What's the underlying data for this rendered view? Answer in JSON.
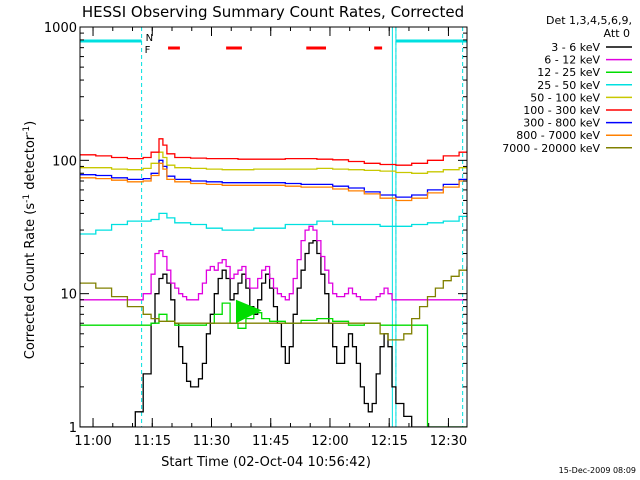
{
  "chart_data": {
    "type": "line",
    "title": "HESSI Observing Summary Count Rates, Corrected",
    "xlabel": "Start Time (02-Oct-04 10:56:42)",
    "ylabel_parts": [
      "Corrected Count Rate (s",
      "-1",
      " detector",
      "-1",
      ")"
    ],
    "ylabel": "Corrected Count Rate (s^-1 detector^-1)",
    "x_unit": "minutes after 10:56:42",
    "xlim": [
      0,
      98
    ],
    "ylim": [
      1,
      1000
    ],
    "y_scale": "log",
    "grid": false,
    "x_tick_labels": [
      {
        "label": "11:00",
        "t": 3.3
      },
      {
        "label": "11:15",
        "t": 18.3
      },
      {
        "label": "11:30",
        "t": 33.3
      },
      {
        "label": "11:45",
        "t": 48.3
      },
      {
        "label": "12:00",
        "t": 63.3
      },
      {
        "label": "12:15",
        "t": 78.3
      },
      {
        "label": "12:30",
        "t": 93.3
      }
    ],
    "y_tick_labels": [
      {
        "label": "1",
        "v": 1
      },
      {
        "label": "10",
        "v": 10
      },
      {
        "label": "100",
        "v": 100
      },
      {
        "label": "1000",
        "v": 1000
      }
    ],
    "legend_header": [
      "Det 1,3,4,5,6,9,",
      "Att 0"
    ],
    "legend_placement": "right",
    "flag_labels": [
      "N",
      "F"
    ],
    "series": [
      {
        "name": "3 - 6 keV",
        "color": "#000000",
        "x": [
          0,
          10,
          14,
          16,
          18,
          19,
          20,
          21,
          22,
          23,
          24,
          25,
          26,
          27,
          28,
          29,
          30,
          31,
          32,
          33,
          34,
          35,
          36,
          37,
          38,
          39,
          40,
          41,
          42,
          43,
          44,
          45,
          46,
          47,
          48,
          49,
          50,
          51,
          52,
          53,
          54,
          55,
          56,
          57,
          58,
          59,
          60,
          61,
          62,
          63,
          64,
          65,
          66,
          67,
          68,
          69,
          70,
          71,
          72,
          73,
          74,
          75,
          76,
          77,
          78,
          79,
          80,
          82,
          84,
          88,
          92,
          98
        ],
        "y": [
          1,
          1,
          1.3,
          2.5,
          6,
          10,
          13,
          14,
          12,
          9,
          6,
          4,
          3,
          2.2,
          2,
          2,
          2.3,
          3,
          5,
          7,
          10,
          13,
          15,
          13,
          9,
          10,
          12,
          14,
          11,
          8,
          7,
          9,
          12,
          14,
          11,
          8,
          6,
          4,
          3,
          4,
          7,
          11,
          15,
          20,
          24,
          25,
          20,
          14,
          10,
          6,
          4,
          3,
          3,
          4,
          5,
          4,
          3,
          2,
          1.5,
          1.3,
          1.5,
          2.5,
          4,
          5,
          4,
          2,
          1.5,
          1.2,
          1,
          1,
          1,
          1
        ]
      },
      {
        "name": "6 - 12 keV",
        "color": "#e000e0",
        "x": [
          0,
          10,
          14,
          16,
          18,
          19,
          20,
          21,
          22,
          23,
          24,
          25,
          26,
          27,
          28,
          29,
          30,
          31,
          32,
          33,
          34,
          35,
          36,
          37,
          38,
          39,
          40,
          41,
          42,
          43,
          44,
          45,
          46,
          47,
          48,
          49,
          50,
          51,
          52,
          53,
          54,
          55,
          56,
          57,
          58,
          59,
          60,
          61,
          62,
          63,
          64,
          65,
          66,
          67,
          68,
          69,
          70,
          71,
          72,
          73,
          74,
          75,
          76,
          77,
          78,
          79,
          80,
          82,
          84,
          88,
          92,
          98
        ],
        "y": [
          9,
          9,
          9,
          10,
          14,
          20,
          21,
          19,
          15,
          12,
          11,
          10,
          9.5,
          9,
          9,
          9,
          10,
          12,
          15,
          16,
          15,
          17,
          18,
          16,
          13,
          14,
          15,
          16,
          13,
          11,
          11,
          13,
          15,
          16,
          13,
          11,
          10,
          9.5,
          9,
          10,
          13,
          18,
          25,
          30,
          32,
          30,
          25,
          19,
          15,
          12,
          10,
          9.5,
          9.5,
          10,
          11,
          10,
          9.5,
          9,
          9,
          9,
          9,
          9.5,
          10,
          11,
          10,
          9,
          9,
          9,
          9,
          9,
          9,
          9
        ]
      },
      {
        "name": "12 - 25 keV",
        "color": "#00dd00",
        "x": [
          0,
          10,
          16,
          18,
          20,
          22,
          24,
          30,
          32,
          34,
          36,
          38,
          40,
          42,
          44,
          46,
          48,
          52,
          56,
          60,
          64,
          68,
          72,
          76,
          80,
          84,
          86,
          88,
          98
        ],
        "y": [
          5.8,
          5.8,
          5.8,
          6,
          7,
          6.2,
          5.8,
          5.8,
          6,
          7,
          8.5,
          6,
          5.5,
          6.5,
          7.2,
          6.5,
          6.2,
          6,
          6.3,
          6.5,
          6.2,
          5.8,
          6,
          5.8,
          5.8,
          5.8,
          5.8,
          1,
          1
        ]
      },
      {
        "name": "25 - 50 keV",
        "color": "#00e0e0",
        "x": [
          0,
          4,
          8,
          12,
          16,
          18,
          20,
          22,
          24,
          28,
          32,
          36,
          40,
          44,
          48,
          52,
          56,
          60,
          64,
          68,
          72,
          76,
          80,
          84,
          88,
          92,
          96,
          98
        ],
        "y": [
          28,
          30,
          33,
          35,
          35,
          36,
          40,
          37,
          34,
          33,
          31,
          30,
          30,
          31,
          31,
          33,
          33,
          35,
          33,
          33,
          33,
          32,
          32,
          33,
          34,
          35,
          38,
          38
        ]
      },
      {
        "name": "50 - 100 keV",
        "color": "#c8c800",
        "x": [
          0,
          4,
          8,
          12,
          16,
          18,
          20,
          21,
          22,
          24,
          28,
          32,
          36,
          40,
          44,
          48,
          52,
          56,
          60,
          64,
          68,
          72,
          76,
          80,
          84,
          88,
          92,
          96,
          98
        ],
        "y": [
          88,
          88,
          86,
          85,
          87,
          95,
          115,
          105,
          92,
          88,
          87,
          86,
          85,
          85,
          86,
          86,
          86,
          86,
          87,
          86,
          85,
          84,
          83,
          81,
          80,
          82,
          85,
          88,
          88
        ]
      },
      {
        "name": "100 - 300 keV",
        "color": "#ff0000",
        "x": [
          0,
          4,
          8,
          12,
          16,
          18,
          20,
          21,
          22,
          24,
          28,
          32,
          36,
          40,
          44,
          48,
          52,
          56,
          60,
          64,
          68,
          72,
          76,
          80,
          84,
          88,
          92,
          96,
          98
        ],
        "y": [
          110,
          108,
          105,
          103,
          105,
          115,
          145,
          130,
          112,
          105,
          104,
          103,
          103,
          102,
          102,
          102,
          103,
          103,
          102,
          101,
          98,
          95,
          93,
          92,
          95,
          100,
          108,
          115,
          115
        ]
      },
      {
        "name": "300 - 800 keV",
        "color": "#0000ff",
        "x": [
          0,
          4,
          8,
          12,
          16,
          18,
          20,
          21,
          22,
          24,
          28,
          32,
          36,
          40,
          44,
          48,
          52,
          56,
          60,
          64,
          68,
          72,
          76,
          80,
          84,
          88,
          92,
          96,
          98
        ],
        "y": [
          78,
          77,
          74,
          72,
          73,
          80,
          100,
          90,
          76,
          72,
          70,
          69,
          68,
          68,
          68,
          68,
          67,
          66,
          66,
          64,
          62,
          58,
          55,
          53,
          55,
          60,
          66,
          72,
          72
        ]
      },
      {
        "name": "800 - 7000 keV",
        "color": "#ff8000",
        "x": [
          0,
          4,
          8,
          12,
          16,
          18,
          20,
          21,
          22,
          24,
          28,
          32,
          36,
          40,
          44,
          48,
          52,
          56,
          60,
          64,
          68,
          72,
          76,
          80,
          84,
          88,
          92,
          96,
          98
        ],
        "y": [
          74,
          73,
          71,
          69,
          70,
          77,
          95,
          86,
          72,
          69,
          67,
          66,
          65,
          65,
          65,
          65,
          64,
          63,
          63,
          61,
          59,
          56,
          52,
          50,
          52,
          57,
          63,
          70,
          70
        ]
      },
      {
        "name": "7000 - 20000 keV",
        "color": "#808000",
        "x": [
          0,
          4,
          8,
          12,
          16,
          18,
          20,
          24,
          28,
          32,
          36,
          40,
          44,
          48,
          52,
          56,
          60,
          64,
          68,
          72,
          76,
          78,
          80,
          82,
          84,
          86,
          88,
          90,
          92,
          94,
          96,
          98
        ],
        "y": [
          12,
          11,
          9.5,
          8,
          7,
          6.5,
          6.2,
          6,
          6,
          6,
          6,
          6,
          6,
          6,
          6,
          6,
          6,
          6,
          6,
          6,
          5,
          4.5,
          4.5,
          5,
          6.5,
          8,
          9.5,
          11,
          12.5,
          13.5,
          15,
          16
        ]
      }
    ],
    "annotation_bars": {
      "cyan": [
        [
          0,
          15.6
        ],
        [
          80,
          98
        ]
      ],
      "red": [
        [
          22.3,
          25.3
        ],
        [
          37,
          41
        ],
        [
          57.3,
          62.3
        ],
        [
          74.5,
          76.5
        ]
      ]
    },
    "dashed_markers": [
      15.6,
      80,
      96.9
    ],
    "solid_markers": [
      79.1,
      80
    ],
    "filled_region": {
      "x": [
        39.5,
        46
      ],
      "lo": 6,
      "hi": 9
    }
  },
  "timestamp": "15-Dec-2009 08:09"
}
